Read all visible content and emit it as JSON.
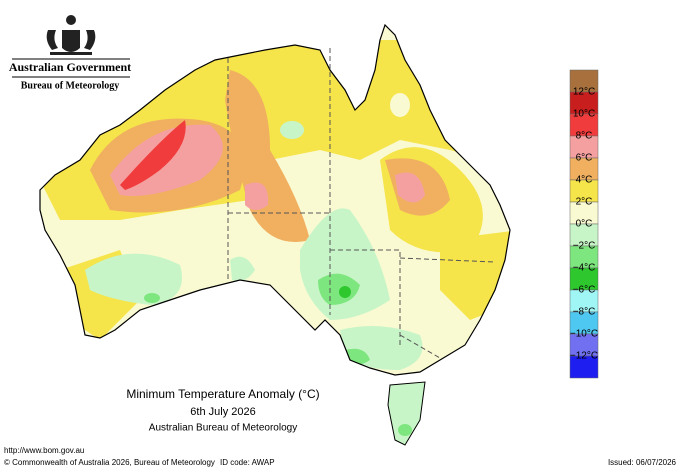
{
  "header": {
    "government": "Australian Government",
    "agency": "Bureau of Meteorology"
  },
  "map": {
    "title": "Minimum Temperature Anomaly (°C)",
    "date": "6th July 2026",
    "source": "Australian Bureau of Meteorology"
  },
  "legend": {
    "colors": [
      "#a8703c",
      "#c81e1e",
      "#f03c3c",
      "#f5a0a0",
      "#f0b060",
      "#f5e44a",
      "#fafad2",
      "#c8f5c8",
      "#7ee67e",
      "#2ec82e",
      "#a0f5f5",
      "#4ec8f0",
      "#7070f0",
      "#1e1ef0"
    ],
    "labels": [
      "12°C",
      "10°C",
      "8°C",
      "6°C",
      "4°C",
      "2°C",
      "0°C",
      "−2°C",
      "−4°C",
      "−6°C",
      "−8°C",
      "−10°C",
      "−12°C"
    ]
  },
  "footer": {
    "url": "http://www.bom.gov.au",
    "copyright": "© Commonwealth of Australia 2026, Bureau of Meteorology",
    "id_code": "ID code: AWAP",
    "issued": "Issued: 06/07/2026"
  }
}
